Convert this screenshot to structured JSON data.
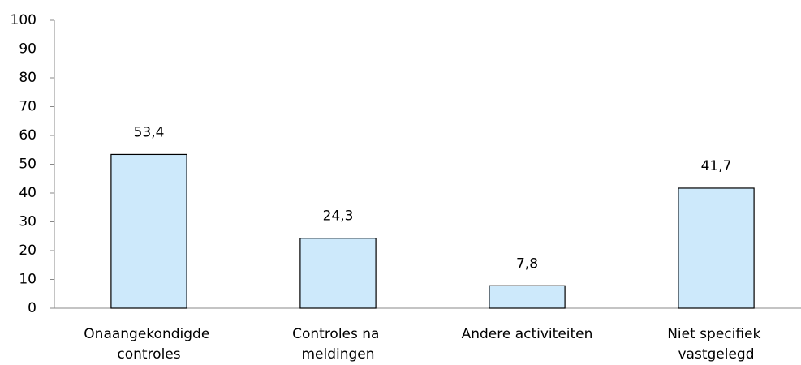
{
  "chart_data": {
    "type": "bar",
    "categories": [
      "Onaangekondigde controles",
      "Controles na meldingen",
      "Andere activiteiten",
      "Niet specifiek vastgelegd"
    ],
    "values": [
      53.4,
      24.3,
      7.8,
      41.7
    ],
    "value_labels": [
      "53,4",
      "24,3",
      "7,8",
      "41,7"
    ],
    "color": "#cde9fb",
    "ylim": [
      0,
      100
    ],
    "yticks": [
      0,
      10,
      20,
      30,
      40,
      50,
      60,
      70,
      80,
      90,
      100
    ],
    "grid": false
  }
}
